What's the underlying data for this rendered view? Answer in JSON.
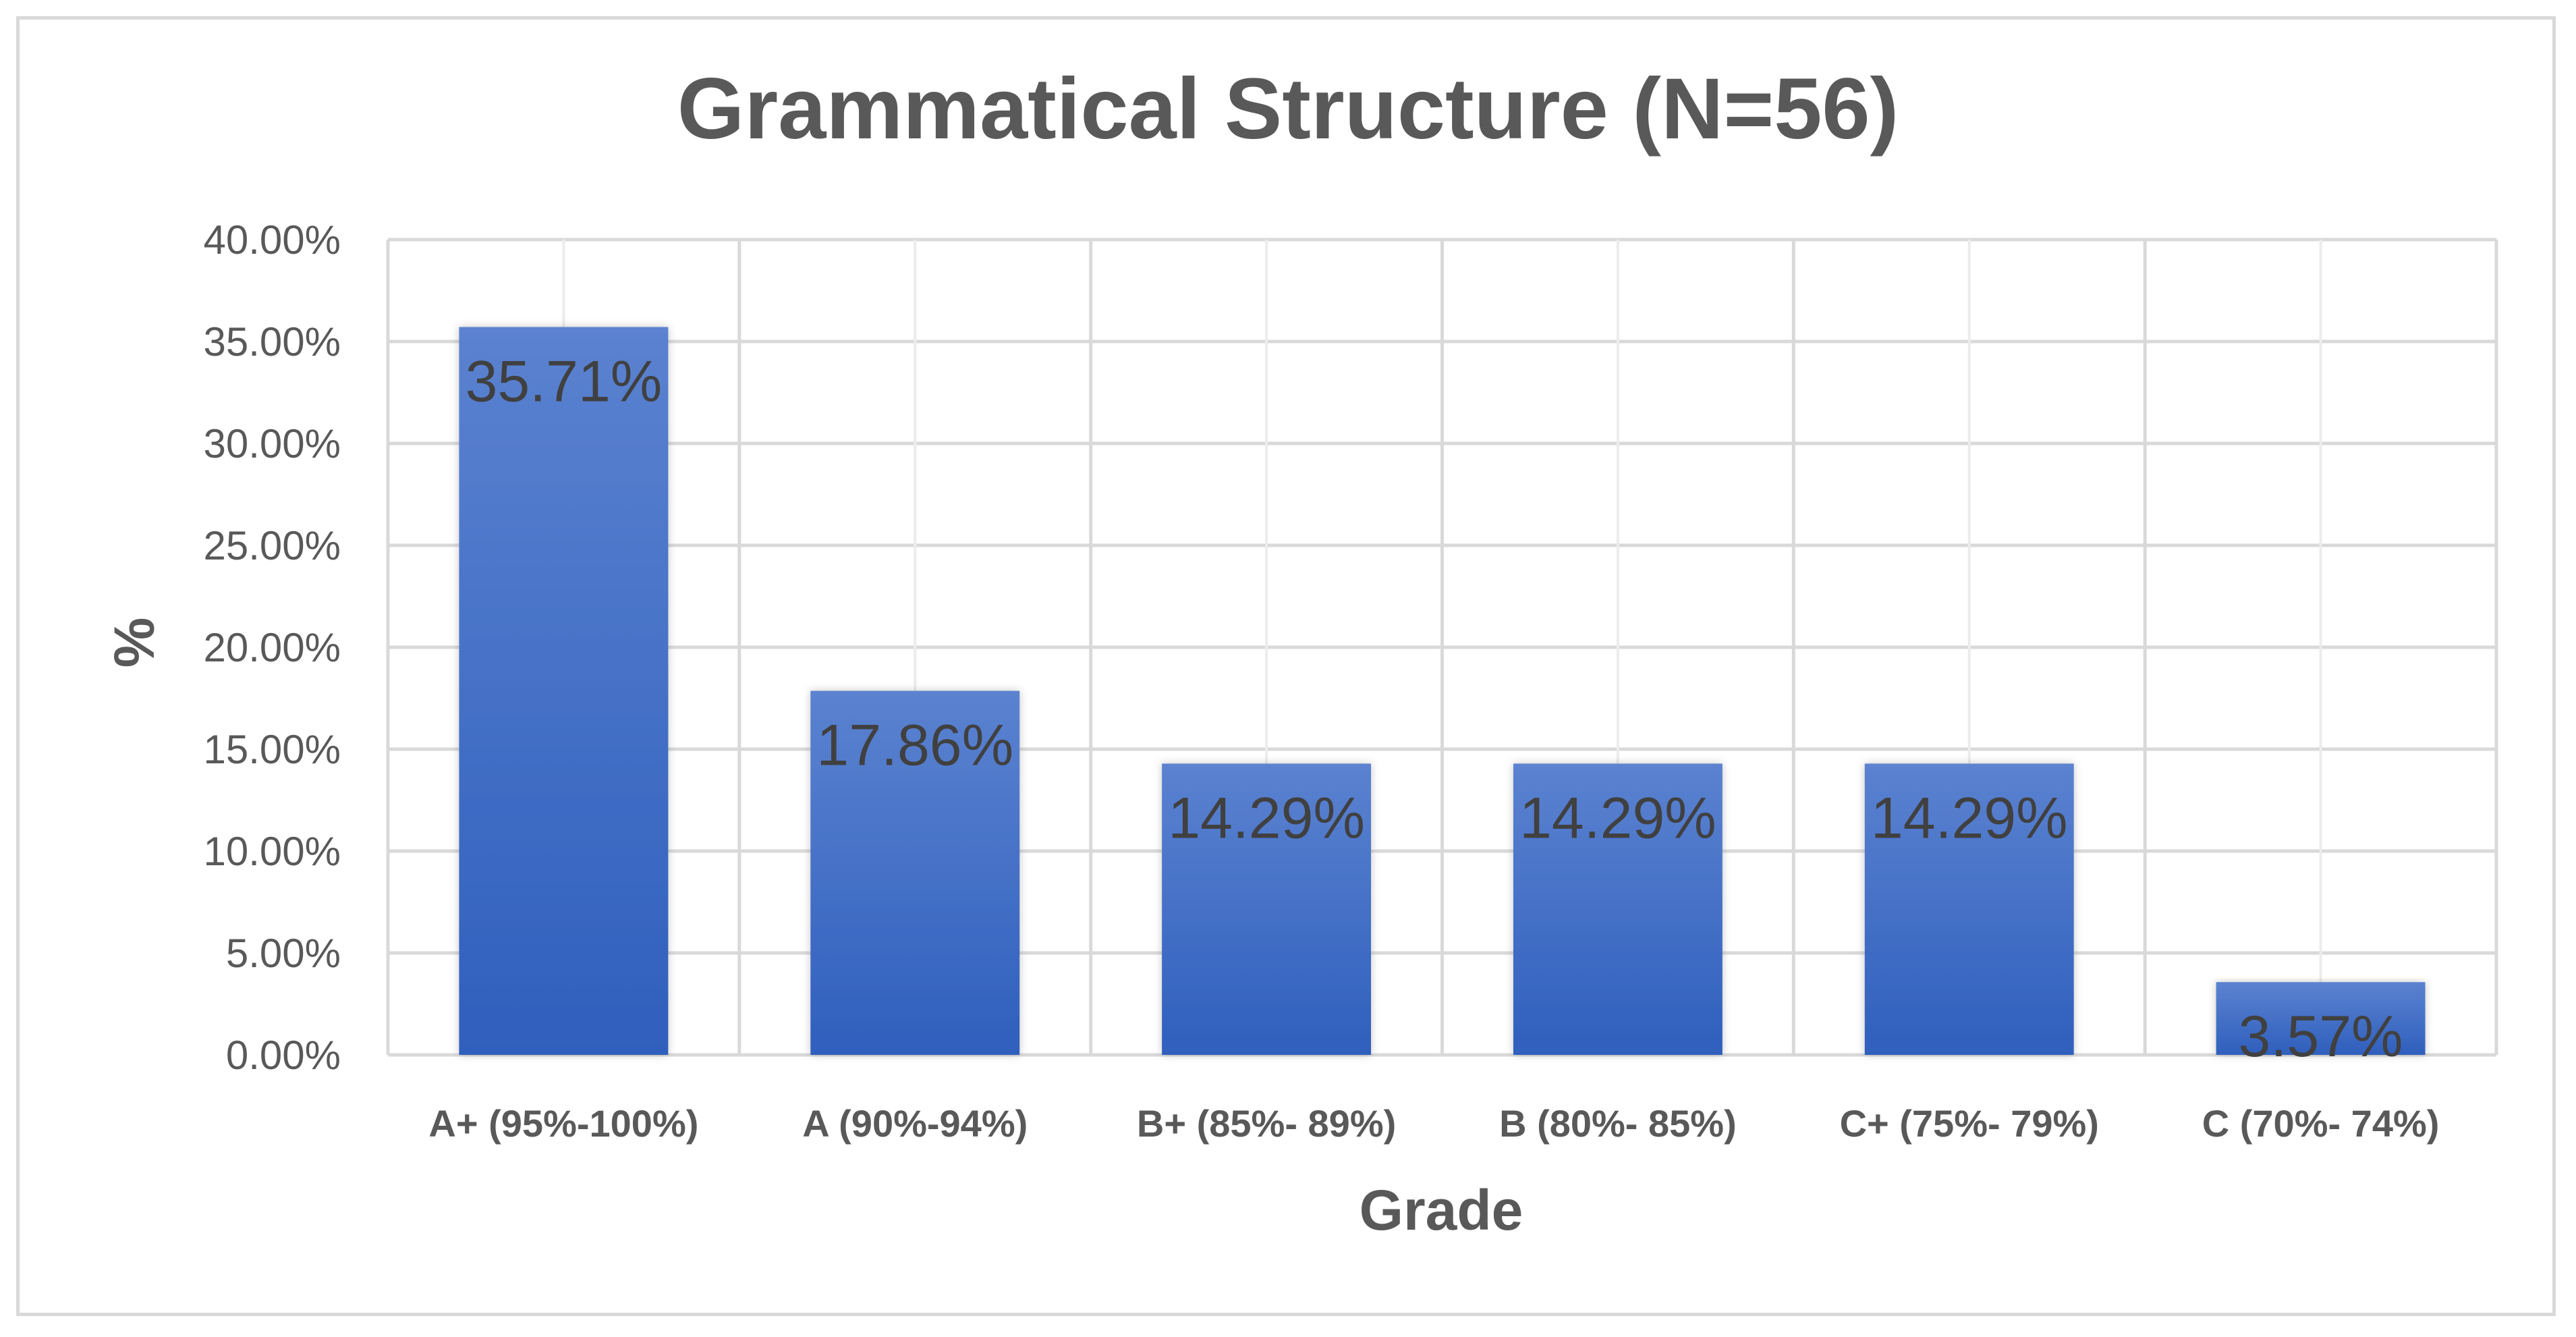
{
  "chart_data": {
    "type": "bar",
    "title": "Grammatical Structure (N=56)",
    "xlabel": "Grade",
    "ylabel": "%",
    "categories": [
      "A+ (95%-100%)",
      "A (90%-94%)",
      "B+ (85%- 89%)",
      "B (80%- 85%)",
      "C+ (75%- 79%)",
      "C (70%- 74%)"
    ],
    "values": [
      35.71,
      17.86,
      14.29,
      14.29,
      14.29,
      3.57
    ],
    "data_labels": [
      "35.71%",
      "17.86%",
      "14.29%",
      "14.29%",
      "14.29%",
      "3.57%"
    ],
    "ylim": [
      0,
      40
    ],
    "y_ticks": [
      0,
      5,
      10,
      15,
      20,
      25,
      30,
      35,
      40
    ],
    "y_tick_labels": [
      "0.00%",
      "5.00%",
      "10.00%",
      "15.00%",
      "20.00%",
      "25.00%",
      "30.00%",
      "35.00%",
      "40.00%"
    ],
    "grid": true,
    "legend": "none",
    "colors": {
      "bar_top": "#5b82d0",
      "bar_bottom": "#2f5fbd",
      "grid": "#d9d9d9",
      "text": "#595959"
    }
  }
}
